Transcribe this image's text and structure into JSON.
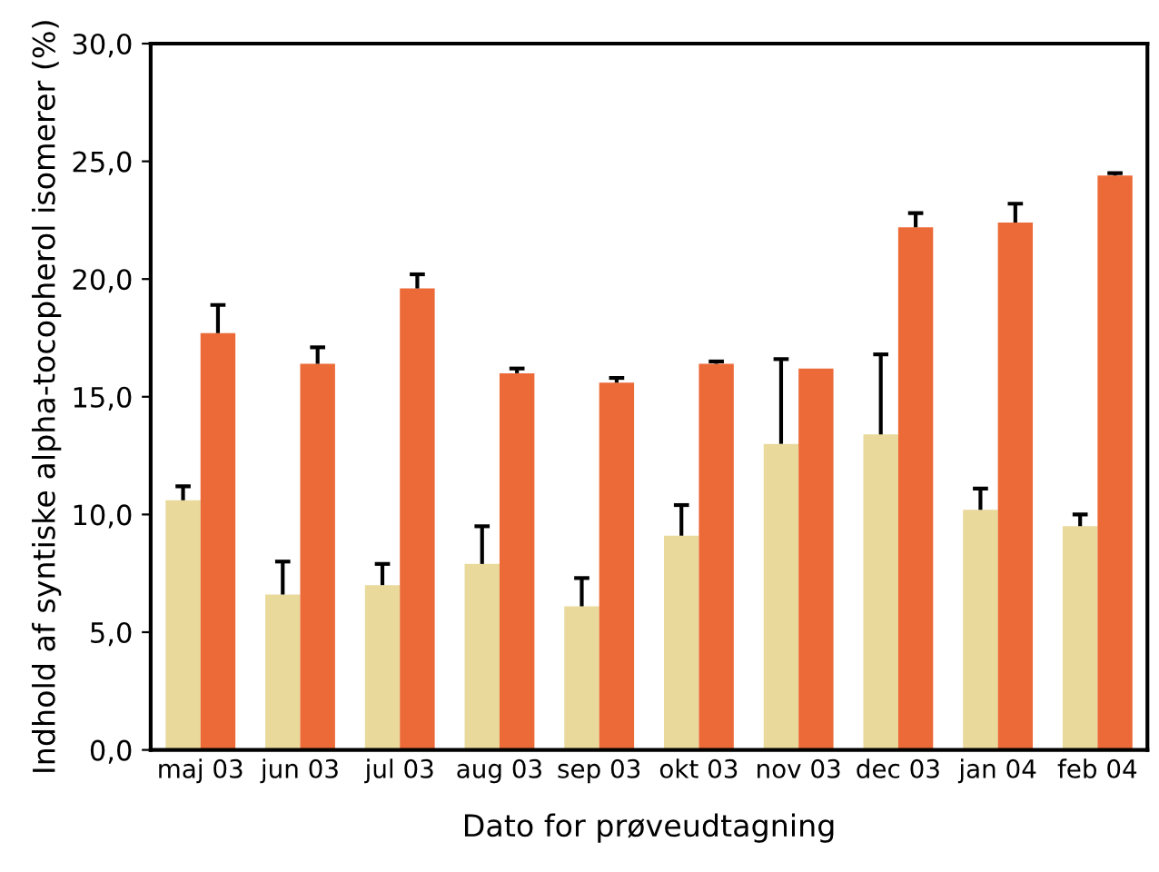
{
  "chart_data": {
    "type": "bar",
    "xlabel": "Dato for prøveudtagning",
    "ylabel": "Indhold af syntiske alpha-tocopherol isomerer (%)",
    "categories": [
      "maj 03",
      "jun 03",
      "jul 03",
      "aug 03",
      "sep 03",
      "okt 03",
      "nov 03",
      "dec 03",
      "jan 04",
      "feb 04"
    ],
    "series": [
      {
        "color": "#e9d99a",
        "values": [
          10.6,
          6.6,
          7.0,
          7.9,
          6.1,
          9.1,
          13.0,
          13.4,
          10.2,
          9.5
        ],
        "errors": [
          [
            10.6,
            11.2
          ],
          [
            6.6,
            8.0
          ],
          [
            7.0,
            7.9
          ],
          [
            7.9,
            9.5
          ],
          [
            6.1,
            7.3
          ],
          [
            9.1,
            10.4
          ],
          [
            13.0,
            16.6
          ],
          [
            13.4,
            16.8
          ],
          [
            10.2,
            11.1
          ],
          [
            9.5,
            10.0
          ]
        ]
      },
      {
        "color": "#ec6a38",
        "values": [
          17.7,
          16.4,
          19.6,
          16.0,
          15.6,
          16.4,
          16.2,
          22.2,
          22.4,
          24.4
        ],
        "errors": [
          [
            17.7,
            18.9
          ],
          [
            16.4,
            17.1
          ],
          [
            19.6,
            20.2
          ],
          [
            16.0,
            16.2
          ],
          [
            15.6,
            15.8
          ],
          [
            16.4,
            16.5
          ],
          null,
          [
            22.2,
            22.8
          ],
          [
            22.4,
            23.2
          ],
          [
            24.4,
            24.5
          ]
        ]
      }
    ],
    "ylim": [
      0,
      30
    ],
    "yticks": [
      {
        "value": 0,
        "label": "0,0"
      },
      {
        "value": 5,
        "label": "5,0"
      },
      {
        "value": 10,
        "label": "10,0"
      },
      {
        "value": 15,
        "label": "15,0"
      },
      {
        "value": 20,
        "label": "20,0"
      },
      {
        "value": 25,
        "label": "25,0"
      },
      {
        "value": 30,
        "label": "30,0"
      }
    ],
    "grid": false,
    "legend": false
  }
}
